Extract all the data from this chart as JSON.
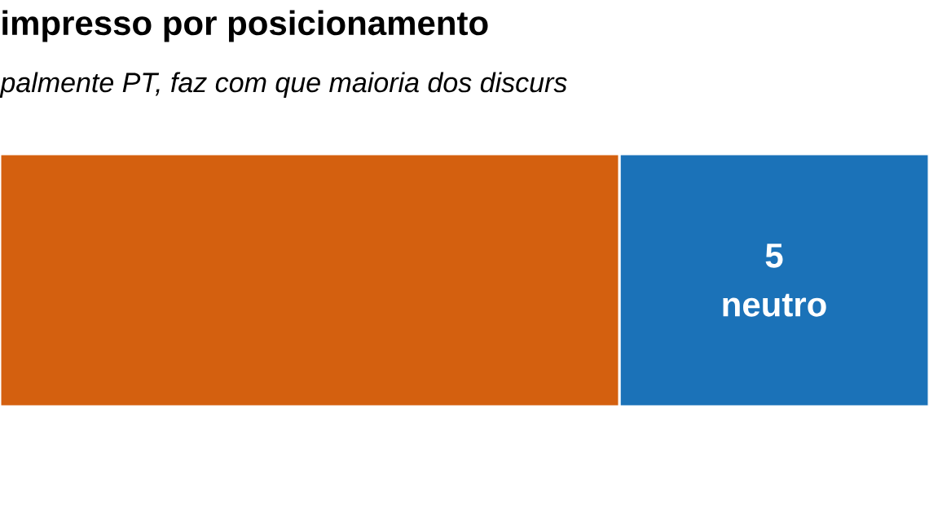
{
  "chart_data": {
    "type": "bar",
    "orientation": "horizontal",
    "stacked": true,
    "title": "impresso por posicionamento",
    "subtitle": "palmente PT, faz com que maioria dos discurs",
    "categories": [
      null
    ],
    "series": [
      {
        "color": "#d4600f",
        "values": [
          10
        ],
        "value_labels": [
          null
        ]
      },
      {
        "name": "neutro",
        "color": "#1b72b8",
        "values": [
          5
        ],
        "value_labels": [
          "5"
        ]
      }
    ]
  }
}
